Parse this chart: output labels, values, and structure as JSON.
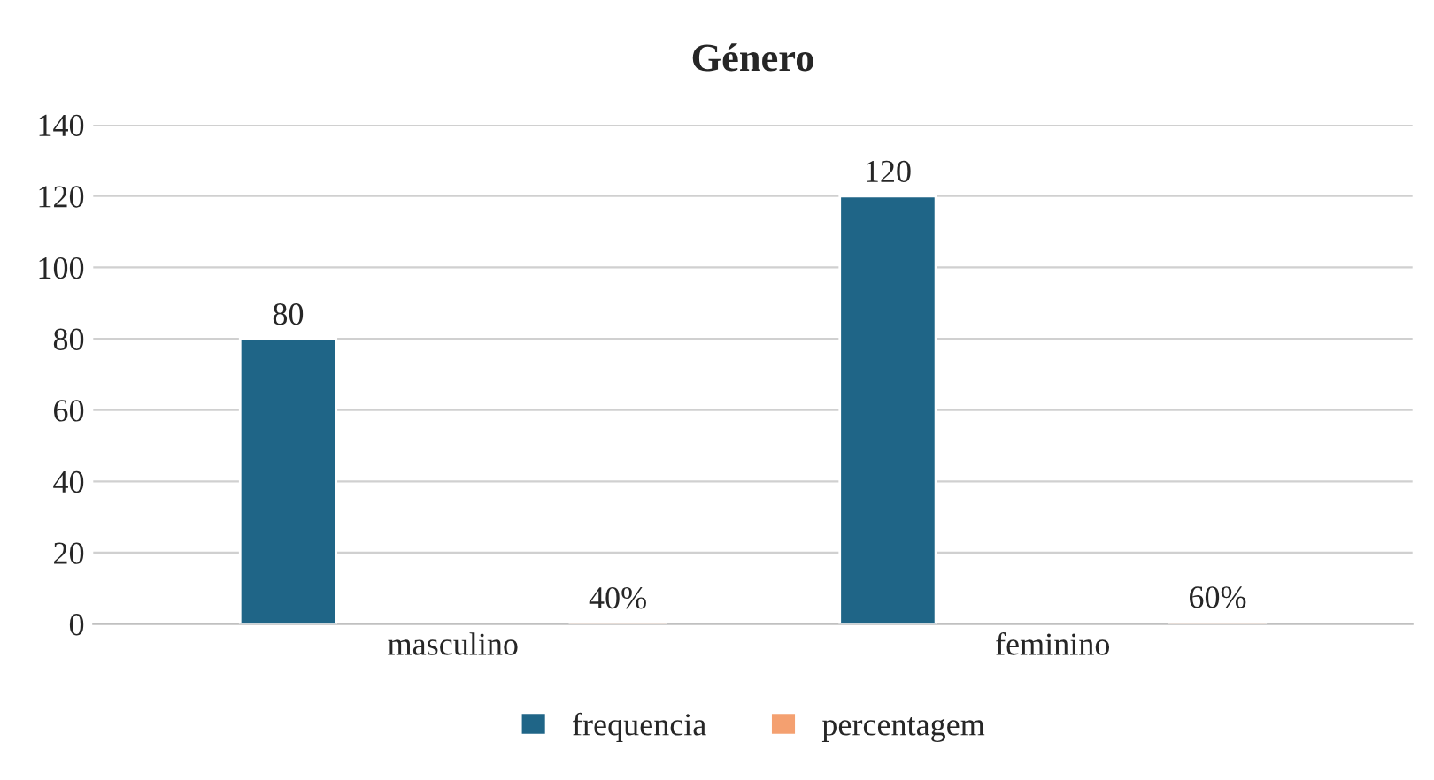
{
  "chart_data": {
    "type": "bar",
    "title": "Género",
    "categories": [
      "masculino",
      "feminino"
    ],
    "series": [
      {
        "name": "frequencia",
        "color": "#1f6587",
        "values": [
          80,
          120
        ],
        "value_labels": [
          "80",
          "120"
        ]
      },
      {
        "name": "percentagem",
        "color": "#f4a070",
        "values": [
          0.4,
          0.6
        ],
        "value_labels": [
          "40%",
          "60%"
        ]
      }
    ],
    "ylim": [
      0,
      140
    ],
    "yticks": [
      0,
      20,
      40,
      60,
      80,
      100,
      120,
      140
    ],
    "grid": "y",
    "legend": "bottom"
  }
}
